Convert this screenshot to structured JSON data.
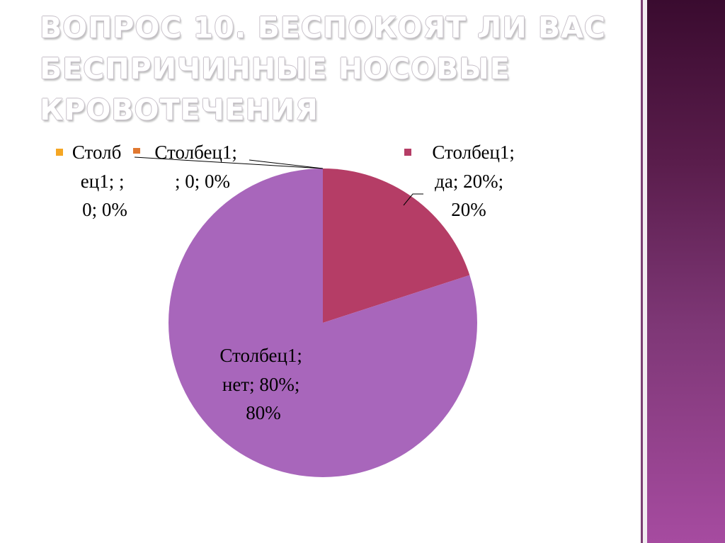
{
  "slide": {
    "title_lines": [
      "Вопрос 10. Беспокоят ли вас",
      "беспричинные носовые",
      "кровотечения"
    ]
  },
  "colors": {
    "side_panel": "#5a1d4c",
    "slice_da": "#b53d66",
    "slice_net": "#a866bb",
    "marker_blank1": "#f5a623",
    "marker_blank2": "#e07830"
  },
  "chart_data": {
    "type": "pie",
    "title": "",
    "series": [
      {
        "name": "Столбец1",
        "categories": [
          "",
          "",
          "да",
          "нет"
        ],
        "values": [
          0,
          0,
          20,
          80
        ]
      }
    ],
    "data_labels": [
      {
        "lines": [
          "Столб",
          "ец1; ;",
          "0; 0%"
        ]
      },
      {
        "lines": [
          "Столбец1;",
          "; 0; 0%"
        ]
      },
      {
        "lines": [
          "Столбец1;",
          "да; 20%;",
          "20%"
        ]
      },
      {
        "lines": [
          "Столбец1;",
          "нет; 80%;",
          "80%"
        ]
      }
    ],
    "legend": "none"
  }
}
